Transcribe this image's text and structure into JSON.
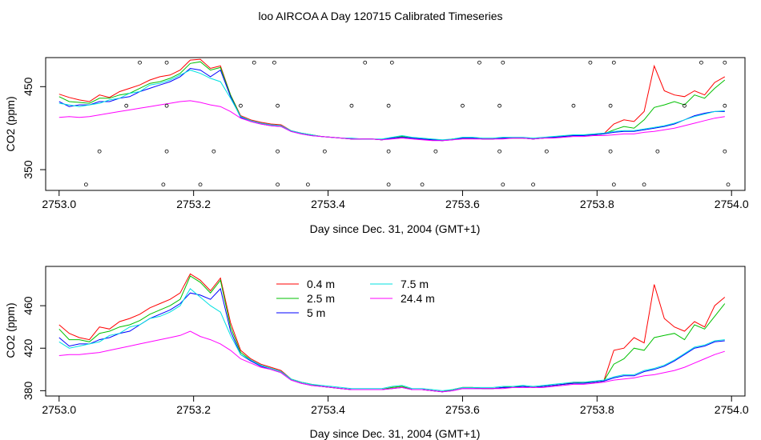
{
  "page_title": "loo AIRCOA A  Day 120715  Calibrated Timeseries",
  "chart_data": [
    {
      "type": "scatter+line",
      "xlabel": "Day since Dec. 31, 2004 (GMT+1)",
      "ylabel": "CO2 (ppm)",
      "xlim": [
        2752.98,
        2754.02
      ],
      "ylim": [
        325,
        485
      ],
      "x_ticks": [
        2753.0,
        2753.2,
        2753.4,
        2753.6,
        2753.8,
        2754.0
      ],
      "x_tick_labels": [
        "2753.0",
        "2753.2",
        "2753.4",
        "2753.6",
        "2753.8",
        "2754.0"
      ],
      "y_ticks": [
        350,
        450
      ],
      "y_tick_labels": [
        "350",
        "450"
      ],
      "grid": false,
      "legend": false,
      "colors": [
        "#ff0000",
        "#00c000",
        "#0000ff",
        "#00e0e0",
        "#ff00ff"
      ],
      "x": [
        2753.0,
        2753.015,
        2753.03,
        2753.045,
        2753.06,
        2753.075,
        2753.09,
        2753.105,
        2753.12,
        2753.135,
        2753.15,
        2753.165,
        2753.18,
        2753.195,
        2753.21,
        2753.225,
        2753.24,
        2753.255,
        2753.27,
        2753.285,
        2753.3,
        2753.315,
        2753.33,
        2753.345,
        2753.36,
        2753.375,
        2753.39,
        2753.405,
        2753.42,
        2753.435,
        2753.45,
        2753.465,
        2753.48,
        2753.495,
        2753.51,
        2753.525,
        2753.54,
        2753.555,
        2753.57,
        2753.585,
        2753.6,
        2753.615,
        2753.63,
        2753.645,
        2753.66,
        2753.675,
        2753.69,
        2753.705,
        2753.72,
        2753.735,
        2753.75,
        2753.765,
        2753.78,
        2753.795,
        2753.81,
        2753.825,
        2753.84,
        2753.855,
        2753.87,
        2753.885,
        2753.9,
        2753.915,
        2753.93,
        2753.945,
        2753.96,
        2753.975,
        2753.99
      ],
      "series": [
        {
          "values": [
            441,
            437,
            434,
            432,
            440,
            437,
            444,
            448,
            452,
            458,
            462,
            464,
            470,
            482,
            483,
            472,
            475,
            440,
            415,
            410,
            407,
            405,
            404,
            397,
            394,
            392,
            390,
            389,
            388,
            387,
            387,
            387,
            386,
            388,
            390,
            388,
            387,
            386,
            385,
            387,
            388,
            388,
            387,
            387,
            388,
            388,
            388,
            387,
            388,
            389,
            390,
            392,
            392,
            392,
            393,
            405,
            410,
            408,
            420,
            475,
            445,
            440,
            438,
            445,
            440,
            455,
            462
          ]
        },
        {
          "values": [
            438,
            432,
            431,
            430,
            436,
            436,
            440,
            442,
            448,
            454,
            456,
            460,
            466,
            478,
            480,
            470,
            473,
            440,
            414,
            409,
            406,
            404,
            403,
            396,
            394,
            392,
            390,
            389,
            388,
            387,
            387,
            387,
            386,
            388,
            390,
            388,
            387,
            386,
            385,
            387,
            388,
            388,
            387,
            387,
            388,
            388,
            388,
            387,
            388,
            389,
            390,
            391,
            392,
            392,
            393,
            398,
            402,
            400,
            410,
            425,
            428,
            432,
            428,
            440,
            436,
            448,
            458
          ]
        },
        {
          "values": [
            432,
            426,
            428,
            428,
            432,
            432,
            436,
            438,
            444,
            448,
            452,
            456,
            462,
            472,
            470,
            462,
            470,
            438,
            413,
            408,
            405,
            403,
            402,
            396,
            393,
            391,
            390,
            389,
            388,
            387,
            387,
            387,
            386,
            388,
            389,
            388,
            387,
            386,
            385,
            386,
            388,
            388,
            387,
            387,
            388,
            388,
            388,
            387,
            388,
            389,
            390,
            391,
            391,
            392,
            393,
            395,
            396,
            396,
            398,
            400,
            402,
            405,
            410,
            415,
            418,
            420,
            420
          ]
        },
        {
          "values": [
            430,
            428,
            426,
            428,
            430,
            434,
            436,
            442,
            444,
            452,
            454,
            458,
            464,
            470,
            466,
            460,
            456,
            436,
            414,
            409,
            406,
            404,
            403,
            397,
            394,
            392,
            390,
            389,
            388,
            388,
            387,
            387,
            387,
            389,
            391,
            389,
            388,
            387,
            386,
            387,
            389,
            389,
            388,
            388,
            389,
            389,
            389,
            388,
            389,
            390,
            391,
            392,
            392,
            393,
            394,
            396,
            397,
            397,
            399,
            401,
            403,
            406,
            410,
            414,
            417,
            420,
            421
          ]
        },
        {
          "values": [
            413,
            414,
            413,
            414,
            416,
            418,
            420,
            422,
            424,
            426,
            428,
            430,
            432,
            433,
            431,
            428,
            426,
            420,
            412,
            408,
            405,
            403,
            402,
            396,
            393,
            391,
            390,
            389,
            388,
            387,
            387,
            387,
            386,
            387,
            388,
            387,
            386,
            385,
            385,
            386,
            387,
            387,
            387,
            387,
            387,
            388,
            388,
            387,
            388,
            388,
            389,
            390,
            390,
            391,
            391,
            392,
            393,
            393,
            395,
            396,
            398,
            400,
            403,
            406,
            409,
            412,
            414
          ]
        }
      ],
      "scatter_points": [
        {
          "x": 2753.12,
          "y": 479
        },
        {
          "x": 2753.16,
          "y": 479
        },
        {
          "x": 2753.29,
          "y": 479
        },
        {
          "x": 2753.32,
          "y": 479
        },
        {
          "x": 2753.455,
          "y": 479
        },
        {
          "x": 2753.495,
          "y": 479
        },
        {
          "x": 2753.625,
          "y": 479
        },
        {
          "x": 2753.66,
          "y": 479
        },
        {
          "x": 2753.79,
          "y": 479
        },
        {
          "x": 2753.825,
          "y": 479
        },
        {
          "x": 2753.955,
          "y": 479
        },
        {
          "x": 2753.99,
          "y": 479
        },
        {
          "x": 2753.1,
          "y": 427
        },
        {
          "x": 2753.16,
          "y": 427
        },
        {
          "x": 2753.27,
          "y": 427
        },
        {
          "x": 2753.325,
          "y": 427
        },
        {
          "x": 2753.435,
          "y": 427
        },
        {
          "x": 2753.49,
          "y": 427
        },
        {
          "x": 2753.6,
          "y": 427
        },
        {
          "x": 2753.655,
          "y": 427
        },
        {
          "x": 2753.765,
          "y": 427
        },
        {
          "x": 2753.82,
          "y": 427
        },
        {
          "x": 2753.93,
          "y": 427
        },
        {
          "x": 2753.99,
          "y": 427
        },
        {
          "x": 2753.06,
          "y": 372
        },
        {
          "x": 2753.16,
          "y": 372
        },
        {
          "x": 2753.23,
          "y": 372
        },
        {
          "x": 2753.325,
          "y": 372
        },
        {
          "x": 2753.395,
          "y": 372
        },
        {
          "x": 2753.49,
          "y": 372
        },
        {
          "x": 2753.56,
          "y": 372
        },
        {
          "x": 2753.655,
          "y": 372
        },
        {
          "x": 2753.725,
          "y": 372
        },
        {
          "x": 2753.82,
          "y": 372
        },
        {
          "x": 2753.89,
          "y": 372
        },
        {
          "x": 2753.99,
          "y": 372
        },
        {
          "x": 2753.04,
          "y": 332
        },
        {
          "x": 2753.155,
          "y": 332
        },
        {
          "x": 2753.21,
          "y": 332
        },
        {
          "x": 2753.325,
          "y": 332
        },
        {
          "x": 2753.37,
          "y": 332
        },
        {
          "x": 2753.49,
          "y": 332
        },
        {
          "x": 2753.54,
          "y": 332
        },
        {
          "x": 2753.66,
          "y": 332
        },
        {
          "x": 2753.705,
          "y": 332
        },
        {
          "x": 2753.825,
          "y": 332
        },
        {
          "x": 2753.87,
          "y": 332
        },
        {
          "x": 2753.995,
          "y": 332
        }
      ]
    },
    {
      "type": "line",
      "xlabel": "Day since Dec. 31, 2004 (GMT+1)",
      "ylabel": "CO2 (ppm)",
      "xlim": [
        2752.98,
        2754.02
      ],
      "ylim": [
        375,
        497
      ],
      "x_ticks": [
        2753.0,
        2753.2,
        2753.4,
        2753.6,
        2753.8,
        2754.0
      ],
      "x_tick_labels": [
        "2753.0",
        "2753.2",
        "2753.4",
        "2753.6",
        "2753.8",
        "2754.0"
      ],
      "y_ticks": [
        380,
        420,
        460
      ],
      "y_tick_labels": [
        "380",
        "420",
        "460"
      ],
      "grid": false,
      "legend": "top-left",
      "x": [
        2753.0,
        2753.015,
        2753.03,
        2753.045,
        2753.06,
        2753.075,
        2753.09,
        2753.105,
        2753.12,
        2753.135,
        2753.15,
        2753.165,
        2753.18,
        2753.195,
        2753.21,
        2753.225,
        2753.24,
        2753.255,
        2753.27,
        2753.285,
        2753.3,
        2753.315,
        2753.33,
        2753.345,
        2753.36,
        2753.375,
        2753.39,
        2753.405,
        2753.42,
        2753.435,
        2753.45,
        2753.465,
        2753.48,
        2753.495,
        2753.51,
        2753.525,
        2753.54,
        2753.555,
        2753.57,
        2753.585,
        2753.6,
        2753.615,
        2753.63,
        2753.645,
        2753.66,
        2753.675,
        2753.69,
        2753.705,
        2753.72,
        2753.735,
        2753.75,
        2753.765,
        2753.78,
        2753.795,
        2753.81,
        2753.825,
        2753.84,
        2753.855,
        2753.87,
        2753.885,
        2753.9,
        2753.915,
        2753.93,
        2753.945,
        2753.96,
        2753.975,
        2753.99
      ],
      "series": [
        {
          "name": "0.4 m",
          "color": "#ff0000",
          "values": [
            442,
            434,
            430,
            428,
            440,
            438,
            445,
            448,
            452,
            458,
            462,
            466,
            472,
            490,
            484,
            474,
            486,
            444,
            418,
            410,
            405,
            402,
            399,
            391,
            388,
            386,
            384,
            383,
            382,
            381,
            381,
            381,
            381,
            383,
            384,
            381,
            381,
            380,
            379,
            381,
            383,
            383,
            382,
            382,
            383,
            384,
            384,
            383,
            384,
            385,
            386,
            388,
            388,
            388,
            389,
            418,
            420,
            430,
            425,
            480,
            448,
            440,
            436,
            445,
            440,
            460,
            468
          ]
        },
        {
          "name": "2.5 m",
          "color": "#00c000",
          "values": [
            438,
            428,
            428,
            426,
            434,
            436,
            440,
            442,
            446,
            452,
            456,
            460,
            466,
            488,
            482,
            472,
            484,
            440,
            416,
            409,
            404,
            401,
            398,
            391,
            388,
            386,
            384,
            383,
            382,
            381,
            381,
            381,
            381,
            383,
            384,
            381,
            381,
            380,
            379,
            381,
            383,
            383,
            382,
            382,
            383,
            384,
            384,
            383,
            384,
            385,
            386,
            387,
            388,
            388,
            389,
            405,
            410,
            420,
            418,
            430,
            432,
            434,
            428,
            442,
            438,
            450,
            462
          ]
        },
        {
          "name": "5 m",
          "color": "#0000ff",
          "values": [
            430,
            422,
            424,
            424,
            428,
            430,
            434,
            436,
            442,
            448,
            452,
            456,
            462,
            472,
            470,
            466,
            476,
            436,
            414,
            408,
            403,
            400,
            397,
            390,
            387,
            385,
            384,
            383,
            382,
            381,
            381,
            381,
            381,
            382,
            383,
            381,
            381,
            380,
            379,
            380,
            382,
            382,
            382,
            382,
            383,
            383,
            384,
            383,
            384,
            385,
            386,
            387,
            387,
            388,
            389,
            392,
            394,
            394,
            398,
            400,
            403,
            408,
            414,
            420,
            422,
            426,
            427
          ]
        },
        {
          "name": "7.5 m",
          "color": "#00e0e0",
          "values": [
            426,
            420,
            422,
            424,
            426,
            432,
            434,
            440,
            442,
            448,
            450,
            454,
            460,
            476,
            468,
            460,
            454,
            432,
            414,
            409,
            404,
            401,
            398,
            391,
            388,
            386,
            385,
            384,
            383,
            382,
            382,
            382,
            382,
            384,
            385,
            382,
            382,
            381,
            380,
            381,
            383,
            383,
            383,
            383,
            384,
            384,
            385,
            384,
            385,
            386,
            387,
            388,
            388,
            389,
            390,
            393,
            395,
            395,
            399,
            401,
            404,
            409,
            415,
            421,
            423,
            427,
            428
          ]
        },
        {
          "name": "24.4 m",
          "color": "#ff00ff",
          "values": [
            413,
            414,
            414,
            415,
            416,
            418,
            420,
            422,
            424,
            426,
            428,
            430,
            432,
            436,
            431,
            428,
            424,
            418,
            410,
            406,
            402,
            400,
            397,
            390,
            387,
            385,
            384,
            383,
            382,
            381,
            381,
            381,
            381,
            382,
            383,
            381,
            381,
            380,
            379,
            380,
            382,
            382,
            382,
            382,
            382,
            383,
            383,
            383,
            383,
            384,
            385,
            386,
            386,
            387,
            388,
            390,
            391,
            392,
            394,
            395,
            397,
            399,
            402,
            406,
            410,
            414,
            417
          ]
        }
      ]
    }
  ]
}
